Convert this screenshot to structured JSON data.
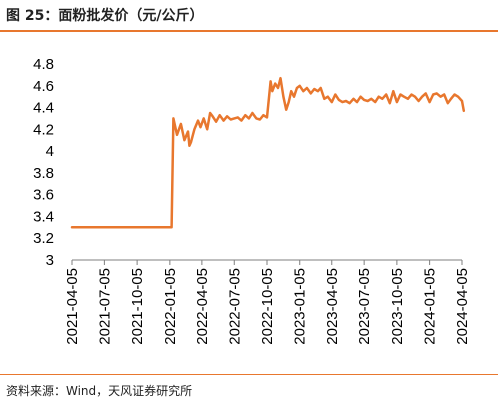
{
  "header": {
    "title": "图 25：面粉批发价（元/公斤）"
  },
  "footer": {
    "source": "资料来源：Wind，天风证券研究所"
  },
  "colors": {
    "accent": "#e8772e",
    "line": "#e8772e"
  },
  "chart_data": {
    "type": "line",
    "title": "",
    "xlabel": "",
    "ylabel": "",
    "ylim": [
      3,
      4.8
    ],
    "yticks": [
      "3",
      "3.2",
      "3.4",
      "3.6",
      "3.8",
      "4",
      "4.2",
      "4.4",
      "4.6",
      "4.8"
    ],
    "xticks": [
      "2021-04-05",
      "2021-07-05",
      "2021-10-05",
      "2022-01-05",
      "2022-04-05",
      "2022-07-05",
      "2022-10-05",
      "2023-01-05",
      "2023-04-05",
      "2023-07-05",
      "2023-10-05",
      "2024-01-05",
      "2024-04-05"
    ],
    "grid": false,
    "series": [
      {
        "name": "",
        "x": [
          "2021-04-05",
          "2021-07-05",
          "2021-10-05",
          "2022-01-05",
          "2022-01-10",
          "2022-01-15",
          "2022-01-25",
          "2022-02-05",
          "2022-02-15",
          "2022-02-25",
          "2022-03-01",
          "2022-03-05",
          "2022-03-15",
          "2022-03-25",
          "2022-04-01",
          "2022-04-10",
          "2022-04-20",
          "2022-04-28",
          "2022-05-05",
          "2022-05-15",
          "2022-05-25",
          "2022-06-05",
          "2022-06-15",
          "2022-06-25",
          "2022-07-05",
          "2022-07-15",
          "2022-07-25",
          "2022-08-05",
          "2022-08-15",
          "2022-08-25",
          "2022-09-05",
          "2022-09-15",
          "2022-09-25",
          "2022-10-05",
          "2022-10-15",
          "2022-10-20",
          "2022-10-28",
          "2022-11-05",
          "2022-11-12",
          "2022-11-20",
          "2022-11-28",
          "2022-12-05",
          "2022-12-12",
          "2022-12-20",
          "2022-12-28",
          "2023-01-05",
          "2023-01-15",
          "2023-01-25",
          "2023-02-05",
          "2023-02-15",
          "2023-02-25",
          "2023-03-05",
          "2023-03-15",
          "2023-03-25",
          "2023-04-05",
          "2023-04-15",
          "2023-04-25",
          "2023-05-05",
          "2023-05-15",
          "2023-05-25",
          "2023-06-05",
          "2023-06-15",
          "2023-06-25",
          "2023-07-05",
          "2023-07-15",
          "2023-07-25",
          "2023-08-05",
          "2023-08-15",
          "2023-08-25",
          "2023-09-05",
          "2023-09-15",
          "2023-09-25",
          "2023-10-05",
          "2023-10-15",
          "2023-10-25",
          "2023-11-05",
          "2023-11-15",
          "2023-11-25",
          "2023-12-05",
          "2023-12-15",
          "2023-12-25",
          "2024-01-05",
          "2024-01-15",
          "2024-01-25",
          "2024-02-05",
          "2024-02-15",
          "2024-02-25",
          "2024-03-05",
          "2024-03-15",
          "2024-03-25",
          "2024-04-05",
          "2024-04-10"
        ],
        "values": [
          3.3,
          3.3,
          3.3,
          3.3,
          3.3,
          4.3,
          4.15,
          4.25,
          4.1,
          4.18,
          4.05,
          4.08,
          4.2,
          4.28,
          4.22,
          4.3,
          4.2,
          4.35,
          4.32,
          4.27,
          4.33,
          4.28,
          4.32,
          4.29,
          4.3,
          4.31,
          4.28,
          4.33,
          4.3,
          4.35,
          4.3,
          4.29,
          4.33,
          4.31,
          4.64,
          4.55,
          4.62,
          4.58,
          4.67,
          4.5,
          4.38,
          4.45,
          4.55,
          4.5,
          4.58,
          4.6,
          4.55,
          4.58,
          4.53,
          4.57,
          4.55,
          4.58,
          4.48,
          4.5,
          4.45,
          4.52,
          4.47,
          4.45,
          4.46,
          4.44,
          4.48,
          4.45,
          4.5,
          4.47,
          4.46,
          4.48,
          4.45,
          4.5,
          4.48,
          4.52,
          4.44,
          4.55,
          4.45,
          4.52,
          4.5,
          4.48,
          4.52,
          4.5,
          4.46,
          4.5,
          4.53,
          4.45,
          4.52,
          4.53,
          4.5,
          4.52,
          4.44,
          4.48,
          4.52,
          4.5,
          4.46,
          4.37
        ]
      }
    ]
  }
}
